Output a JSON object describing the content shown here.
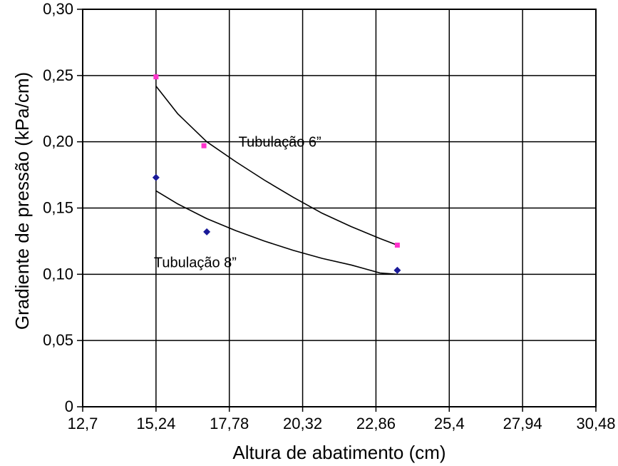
{
  "chart_data": {
    "type": "line",
    "xlabel": "Altura de abatimento (cm)",
    "ylabel": "Gradiente de pressão (kPa/cm)",
    "x_ticks": [
      {
        "value": 12.7,
        "label": "12,7"
      },
      {
        "value": 15.24,
        "label": "15,24"
      },
      {
        "value": 17.78,
        "label": "17,78"
      },
      {
        "value": 20.32,
        "label": "20,32"
      },
      {
        "value": 22.86,
        "label": "22,86"
      },
      {
        "value": 25.4,
        "label": "25,4"
      },
      {
        "value": 27.94,
        "label": "27,94"
      },
      {
        "value": 30.48,
        "label": "30,48"
      }
    ],
    "y_ticks": [
      {
        "value": 0,
        "label": "0"
      },
      {
        "value": 0.05,
        "label": "0,05"
      },
      {
        "value": 0.1,
        "label": "0,10"
      },
      {
        "value": 0.15,
        "label": "0,15"
      },
      {
        "value": 0.2,
        "label": "0,20"
      },
      {
        "value": 0.25,
        "label": "0,25"
      },
      {
        "value": 0.3,
        "label": "0,30"
      }
    ],
    "xlim": [
      12.7,
      30.48
    ],
    "ylim": [
      0,
      0.3
    ],
    "grid": true,
    "legend": "none",
    "series": [
      {
        "points": [
          {
            "x": 15.24,
            "y": 0.249
          },
          {
            "x": 16.9,
            "y": 0.197
          },
          {
            "x": 23.6,
            "y": 0.122
          }
        ],
        "trend": [
          {
            "x": 15.24,
            "y": 0.242
          },
          {
            "x": 16.0,
            "y": 0.221
          },
          {
            "x": 17.0,
            "y": 0.2
          },
          {
            "x": 18.0,
            "y": 0.185
          },
          {
            "x": 19.0,
            "y": 0.171
          },
          {
            "x": 20.0,
            "y": 0.158
          },
          {
            "x": 21.0,
            "y": 0.146
          },
          {
            "x": 22.0,
            "y": 0.136
          },
          {
            "x": 23.0,
            "y": 0.127
          },
          {
            "x": 23.6,
            "y": 0.122
          }
        ],
        "marker_color": "#ff33cc",
        "marker_shape": "square"
      },
      {
        "points": [
          {
            "x": 15.24,
            "y": 0.173
          },
          {
            "x": 17.0,
            "y": 0.132
          },
          {
            "x": 23.6,
            "y": 0.103
          }
        ],
        "trend": [
          {
            "x": 15.24,
            "y": 0.163
          },
          {
            "x": 16.0,
            "y": 0.153
          },
          {
            "x": 17.0,
            "y": 0.142
          },
          {
            "x": 18.0,
            "y": 0.133
          },
          {
            "x": 19.0,
            "y": 0.125
          },
          {
            "x": 20.0,
            "y": 0.118
          },
          {
            "x": 21.0,
            "y": 0.112
          },
          {
            "x": 22.0,
            "y": 0.107
          },
          {
            "x": 23.0,
            "y": 0.101
          },
          {
            "x": 23.6,
            "y": 0.1
          }
        ],
        "marker_color": "#1a1a99",
        "marker_shape": "diamond"
      }
    ],
    "annotations": [
      {
        "text": "Tubulação 6”",
        "x": 18.1,
        "y": 0.2,
        "anchor": "start"
      },
      {
        "text": "Tubulação 8”",
        "x": 16.6,
        "y": 0.109,
        "anchor": "middle"
      }
    ]
  }
}
